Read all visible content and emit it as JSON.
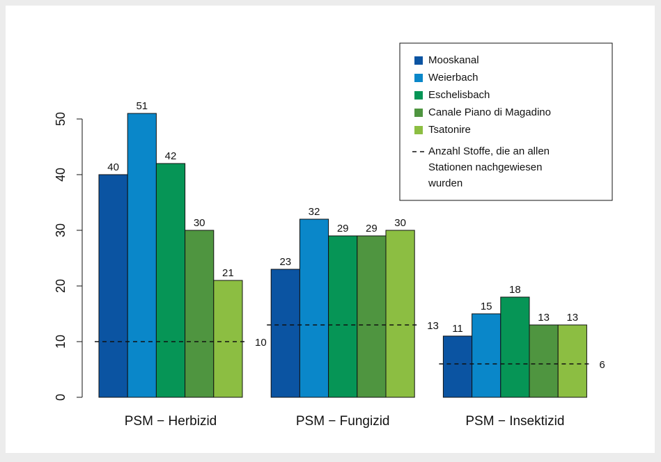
{
  "chart_data": {
    "type": "bar",
    "categories": [
      "PSM − Herbizid",
      "PSM − Fungizid",
      "PSM − Insektizid"
    ],
    "series": [
      {
        "name": "Mooskanal",
        "color": "#0b54a2",
        "values": [
          40,
          23,
          11
        ]
      },
      {
        "name": "Weierbach",
        "color": "#0a87c9",
        "values": [
          51,
          32,
          15
        ]
      },
      {
        "name": "Eschelisbach",
        "color": "#069556",
        "values": [
          42,
          29,
          18
        ]
      },
      {
        "name": "Canale Piano di Magadino",
        "color": "#4f9540",
        "values": [
          30,
          29,
          13
        ]
      },
      {
        "name": "Tsatonire",
        "color": "#8cbe42",
        "values": [
          21,
          30,
          13
        ]
      }
    ],
    "reference": {
      "name_lines": [
        "Anzahl Stoffe, die an allen",
        "Stationen nachgewiesen",
        "wurden"
      ],
      "values": [
        10,
        13,
        6
      ]
    },
    "ylim": [
      0,
      50
    ],
    "yticks": [
      0,
      10,
      20,
      30,
      40,
      50
    ],
    "grid": false,
    "legend": "top-right"
  }
}
